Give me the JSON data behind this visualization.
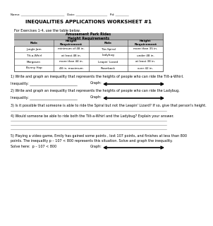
{
  "title": "INEQUALITIES APPLICATIONS WORKSHEET #1",
  "name_line": "Name: _____________________________   Date: _____________________   Pd: _________",
  "intro_text": "For Exercises 1-4, use the table below.",
  "table_title1": "Amusement Park Rides",
  "table_title2": "Height Requirements",
  "col_headers": [
    "Ride",
    "Height\nRequirement",
    "Ride",
    "Height\nRequirement"
  ],
  "table_data": [
    [
      "Jungle Jam",
      "minimum of 48 in.",
      "Tite-Spiral",
      "more than 35 in."
    ],
    [
      "Tilt-a-Whirl",
      "at least 48 in.",
      "Ladybug",
      "under 48 in."
    ],
    [
      "Morgasen",
      "more than 44 in.",
      "Leapin' Lizard",
      "at least 38 in."
    ],
    [
      "Bunny Hop",
      "48 in. maximum",
      "Roarrback",
      "over 42 in."
    ]
  ],
  "q1": "1) Write and graph an inequality that represents the heights of people who can ride the Tilt-a-Whirl.",
  "q1_ineq": "Inequality: ___________________________",
  "q1_graph": "Graph:",
  "q2": "2) Write and graph an inequality that represents the heights of people who can ride the Ladybug.",
  "q2_ineq": "Inequality: ___________________________",
  "q2_graph": "Graph:",
  "q3": "3) Is it possible that someone is able to ride the Spiral but not the Leapin' Lizard? If so, give that person's height.",
  "q4": "4) Would someone be able to ride both the Tilt-a-Whirl and the Ladybug? Explain your answer.",
  "q5_text1": "5) Playing a video game, Emily has gained some points , lost 107 points, and finishes at less than 800",
  "q5_text2": "points. The inequality p – 107 < 800 represents this situation. Solve and graph the inequality.",
  "q5_solve": "Solve here:  p – 107 < 800",
  "q5_graph": "Graph:",
  "bg_color": "#ffffff",
  "text_color": "#000000",
  "table_header_bg": "#b0b0b0",
  "table_subheader_bg": "#c8c8c8",
  "table_border_color": "#555555",
  "line_color": "#888888",
  "arrow_color": "#000000"
}
